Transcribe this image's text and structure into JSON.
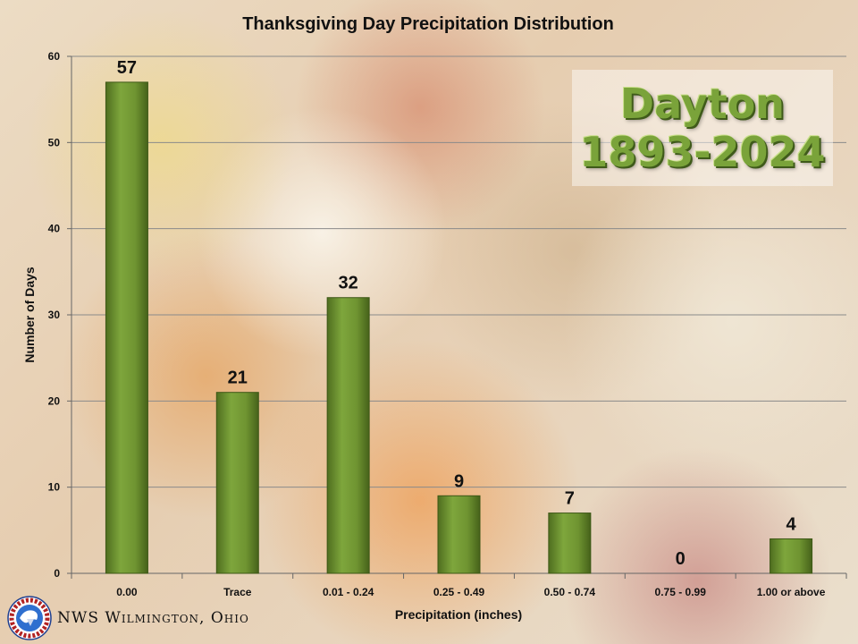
{
  "chart_data": {
    "type": "bar",
    "title": "Thanksgiving Day Precipitation Distribution",
    "xlabel": "Precipitation (inches)",
    "ylabel": "Number of Days",
    "categories": [
      "0.00",
      "Trace",
      "0.01 - 0.24",
      "0.25 - 0.49",
      "0.50 - 0.74",
      "0.75 - 0.99",
      "1.00 or above"
    ],
    "values": [
      57,
      21,
      32,
      9,
      7,
      0,
      4
    ],
    "ylim": [
      0,
      60
    ],
    "yticks": [
      0,
      10,
      20,
      30,
      40,
      50,
      60
    ],
    "grid": true,
    "legend": "none",
    "bar_color": "#6f9431"
  },
  "station": {
    "name": "Dayton",
    "years": "1893-2024"
  },
  "footer": {
    "office": "NWS Wilmington, Ohio",
    "logo_icon": "nws-logo-icon"
  }
}
